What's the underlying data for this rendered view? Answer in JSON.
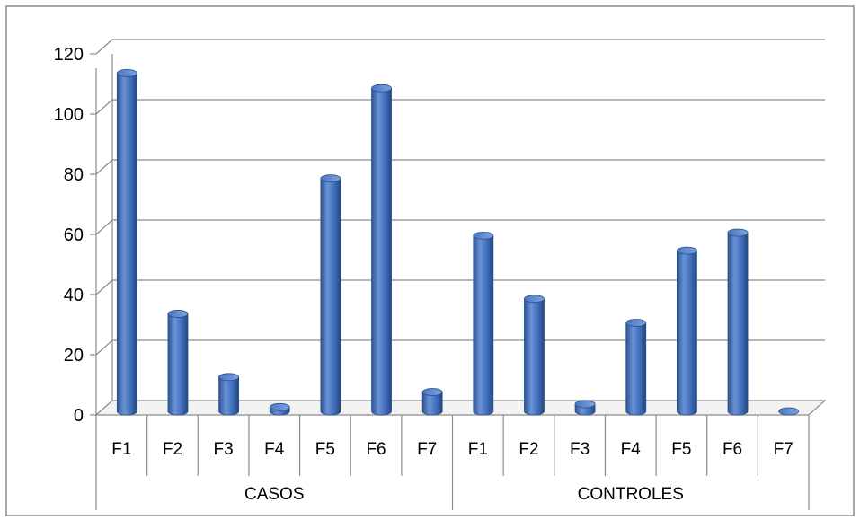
{
  "chart_data": {
    "type": "bar",
    "style": "3d-cylinder",
    "grid": true,
    "legend": "none",
    "ylim": [
      0,
      120
    ],
    "yticks": [
      0,
      20,
      40,
      60,
      80,
      100,
      120
    ],
    "ytick_labels": [
      "0",
      "20",
      "40",
      "60",
      "80",
      "100",
      "120"
    ],
    "bar_color": "#4472c4",
    "groups": [
      {
        "label": "CASOS",
        "categories": [
          "F1",
          "F2",
          "F3",
          "F4",
          "F5",
          "F6",
          "F7"
        ],
        "values": [
          113,
          33,
          12,
          2,
          78,
          108,
          7
        ]
      },
      {
        "label": "CONTROLES",
        "categories": [
          "F1",
          "F2",
          "F3",
          "F4",
          "F5",
          "F6",
          "F7"
        ],
        "values": [
          59,
          38,
          3,
          30,
          54,
          60,
          0
        ]
      }
    ]
  }
}
